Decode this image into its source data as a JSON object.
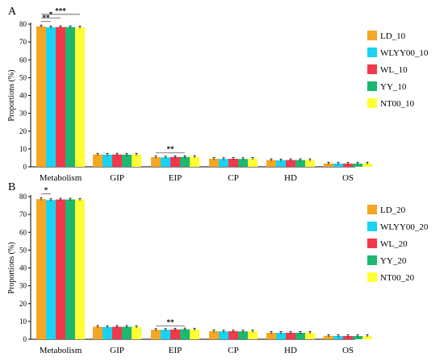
{
  "chart_data": [
    {
      "panel": "A",
      "type": "bar",
      "ylabel": "Proportions (%)",
      "ylim": [
        0,
        80
      ],
      "yticks": [
        0,
        10,
        20,
        30,
        40,
        50,
        60,
        70,
        80
      ],
      "categories": [
        "Metabolism",
        "GIP",
        "EIP",
        "CP",
        "HD",
        "OS"
      ],
      "legend_position": "right",
      "series": [
        {
          "name": "LD_10",
          "color": "#F5A623",
          "values": [
            78.8,
            6.9,
            5.4,
            4.5,
            3.8,
            1.9
          ]
        },
        {
          "name": "WLYY00_10",
          "color": "#19D3F2",
          "values": [
            78.3,
            6.8,
            5.3,
            4.4,
            3.7,
            1.8
          ]
        },
        {
          "name": "WL_10",
          "color": "#F2394B",
          "values": [
            78.4,
            6.9,
            5.5,
            4.5,
            3.8,
            1.8
          ]
        },
        {
          "name": "YY_10",
          "color": "#1DB870",
          "values": [
            78.4,
            6.8,
            5.5,
            4.4,
            3.8,
            1.8
          ]
        },
        {
          "name": "NT00_10",
          "color": "#FFFF33",
          "values": [
            78.2,
            6.9,
            5.6,
            4.5,
            3.8,
            1.9
          ]
        }
      ],
      "annotations": [
        {
          "category": "Metabolism",
          "from_series": 0,
          "to_series": 1,
          "label": "**",
          "y": 81.5
        },
        {
          "category": "Metabolism",
          "from_series": 0,
          "to_series": 2,
          "label": "*",
          "y": 83.5
        },
        {
          "category": "Metabolism",
          "from_series": 0,
          "to_series": 4,
          "label": "***",
          "y": 85.5
        },
        {
          "category": "EIP",
          "from_series": 0,
          "to_series": 3,
          "label": "**",
          "y": 7.8
        }
      ]
    },
    {
      "panel": "B",
      "type": "bar",
      "ylabel": "Proportions (%)",
      "ylim": [
        0,
        80
      ],
      "yticks": [
        0,
        10,
        20,
        30,
        40,
        50,
        60,
        70,
        80
      ],
      "categories": [
        "Metabolism",
        "GIP",
        "EIP",
        "CP",
        "HD",
        "OS"
      ],
      "legend_position": "right",
      "series": [
        {
          "name": "LD_20",
          "color": "#F5A623",
          "values": [
            78.6,
            7.0,
            5.3,
            4.5,
            3.6,
            1.9
          ]
        },
        {
          "name": "WLYY00_20",
          "color": "#19D3F2",
          "values": [
            78.1,
            6.9,
            5.3,
            4.4,
            3.6,
            1.8
          ]
        },
        {
          "name": "WL_20",
          "color": "#F2394B",
          "values": [
            78.4,
            7.0,
            5.5,
            4.5,
            3.6,
            1.8
          ]
        },
        {
          "name": "YY_20",
          "color": "#1DB870",
          "values": [
            78.4,
            7.0,
            5.6,
            4.4,
            3.6,
            1.8
          ]
        },
        {
          "name": "NT00_20",
          "color": "#FFFF33",
          "values": [
            78.3,
            6.9,
            5.5,
            4.5,
            3.7,
            1.9
          ]
        }
      ],
      "annotations": [
        {
          "category": "Metabolism",
          "from_series": 0,
          "to_series": 1,
          "label": "*",
          "y": 81.5
        },
        {
          "category": "EIP",
          "from_series": 0,
          "to_series": 3,
          "label": "**",
          "y": 7.5
        }
      ]
    }
  ]
}
